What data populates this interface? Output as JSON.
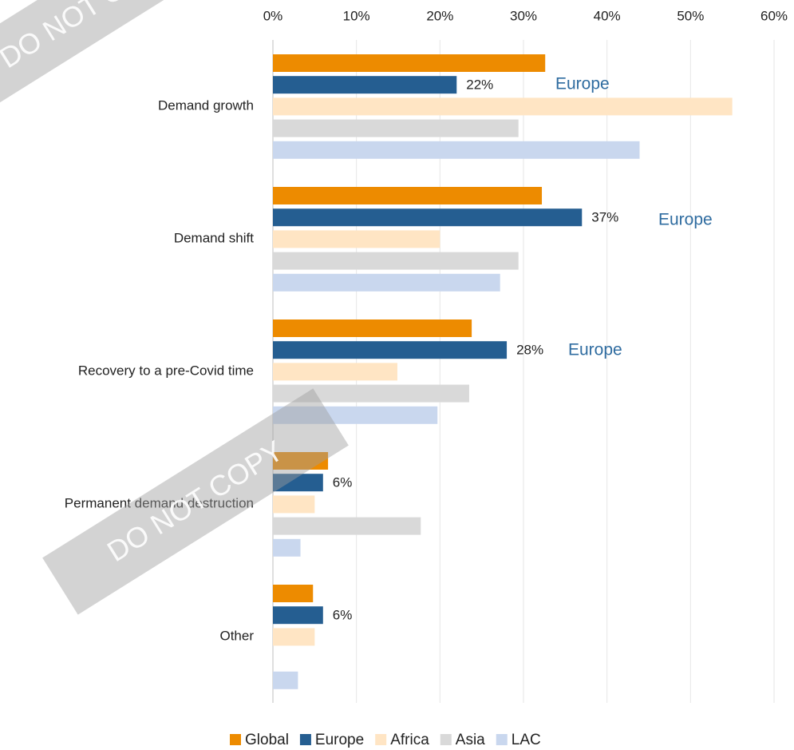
{
  "chart_data": {
    "type": "bar",
    "orientation": "horizontal",
    "categories": [
      "Demand growth",
      "Demand shift",
      "Recovery to a pre-Covid time",
      "Permanent demand destruction",
      "Other"
    ],
    "series": [
      {
        "name": "Global",
        "color": "#ED8B00",
        "values": [
          32.6,
          32.2,
          23.8,
          6.6,
          4.8
        ]
      },
      {
        "name": "Europe",
        "color": "#255E91",
        "values": [
          22,
          37,
          28,
          6,
          6
        ],
        "value_labels": [
          "22%",
          "37%",
          "28%",
          "6%",
          "6%"
        ]
      },
      {
        "name": "Africa",
        "color": "#FFE5C4",
        "values": [
          55,
          20,
          14.9,
          5,
          5
        ]
      },
      {
        "name": "Asia",
        "color": "#D9D9D9",
        "values": [
          29.4,
          29.4,
          23.5,
          17.7,
          null
        ]
      },
      {
        "name": "LAC",
        "color": "#C9D7EE",
        "values": [
          43.9,
          27.2,
          19.7,
          3.3,
          3
        ]
      }
    ],
    "xlim": [
      0,
      60
    ],
    "xticks": [
      {
        "value": 0,
        "label": "0%"
      },
      {
        "value": 10,
        "label": "10%"
      },
      {
        "value": 20,
        "label": "20%"
      },
      {
        "value": 30,
        "label": "30%"
      },
      {
        "value": 40,
        "label": "40%"
      },
      {
        "value": 50,
        "label": "50%"
      },
      {
        "value": 60,
        "label": "60%"
      }
    ],
    "grid": true,
    "legend": "bottom",
    "annotations": [
      "Europe",
      "Europe",
      "Europe"
    ],
    "watermark": "DO NOT COPY"
  }
}
